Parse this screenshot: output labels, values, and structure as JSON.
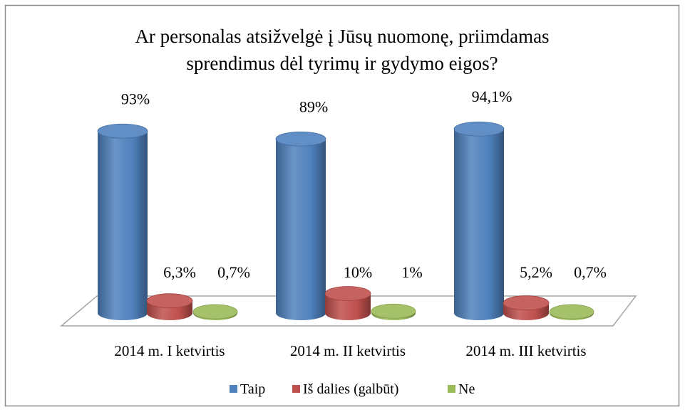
{
  "chart_data": {
    "type": "bar3d-cylinder",
    "title": [
      "Ar personalas atsižvelgė  į Jūsų nuomonę, priimdamas",
      "sprendimus dėl tyrimų ir gydymo eigos?"
    ],
    "categories": [
      "2014 m. I ketvirtis",
      "2014 m. II ketvirtis",
      "2014 m. III ketvirtis"
    ],
    "series": [
      {
        "name": "Taip",
        "color": "#4f81bd",
        "values": [
          93,
          89,
          94.1
        ],
        "value_labels": [
          "93%",
          "89%",
          "94,1%"
        ]
      },
      {
        "name": "Iš dalies (galbūt)",
        "color": "#c0504d",
        "values": [
          6.3,
          10,
          5.2
        ],
        "value_labels": [
          "6,3%",
          "10%",
          "5,2%"
        ]
      },
      {
        "name": "Ne",
        "color": "#9bbb59",
        "values": [
          0.7,
          1,
          0.7
        ],
        "value_labels": [
          "0,7%",
          "1%",
          "0,7%"
        ]
      }
    ],
    "legend": "bottom"
  }
}
